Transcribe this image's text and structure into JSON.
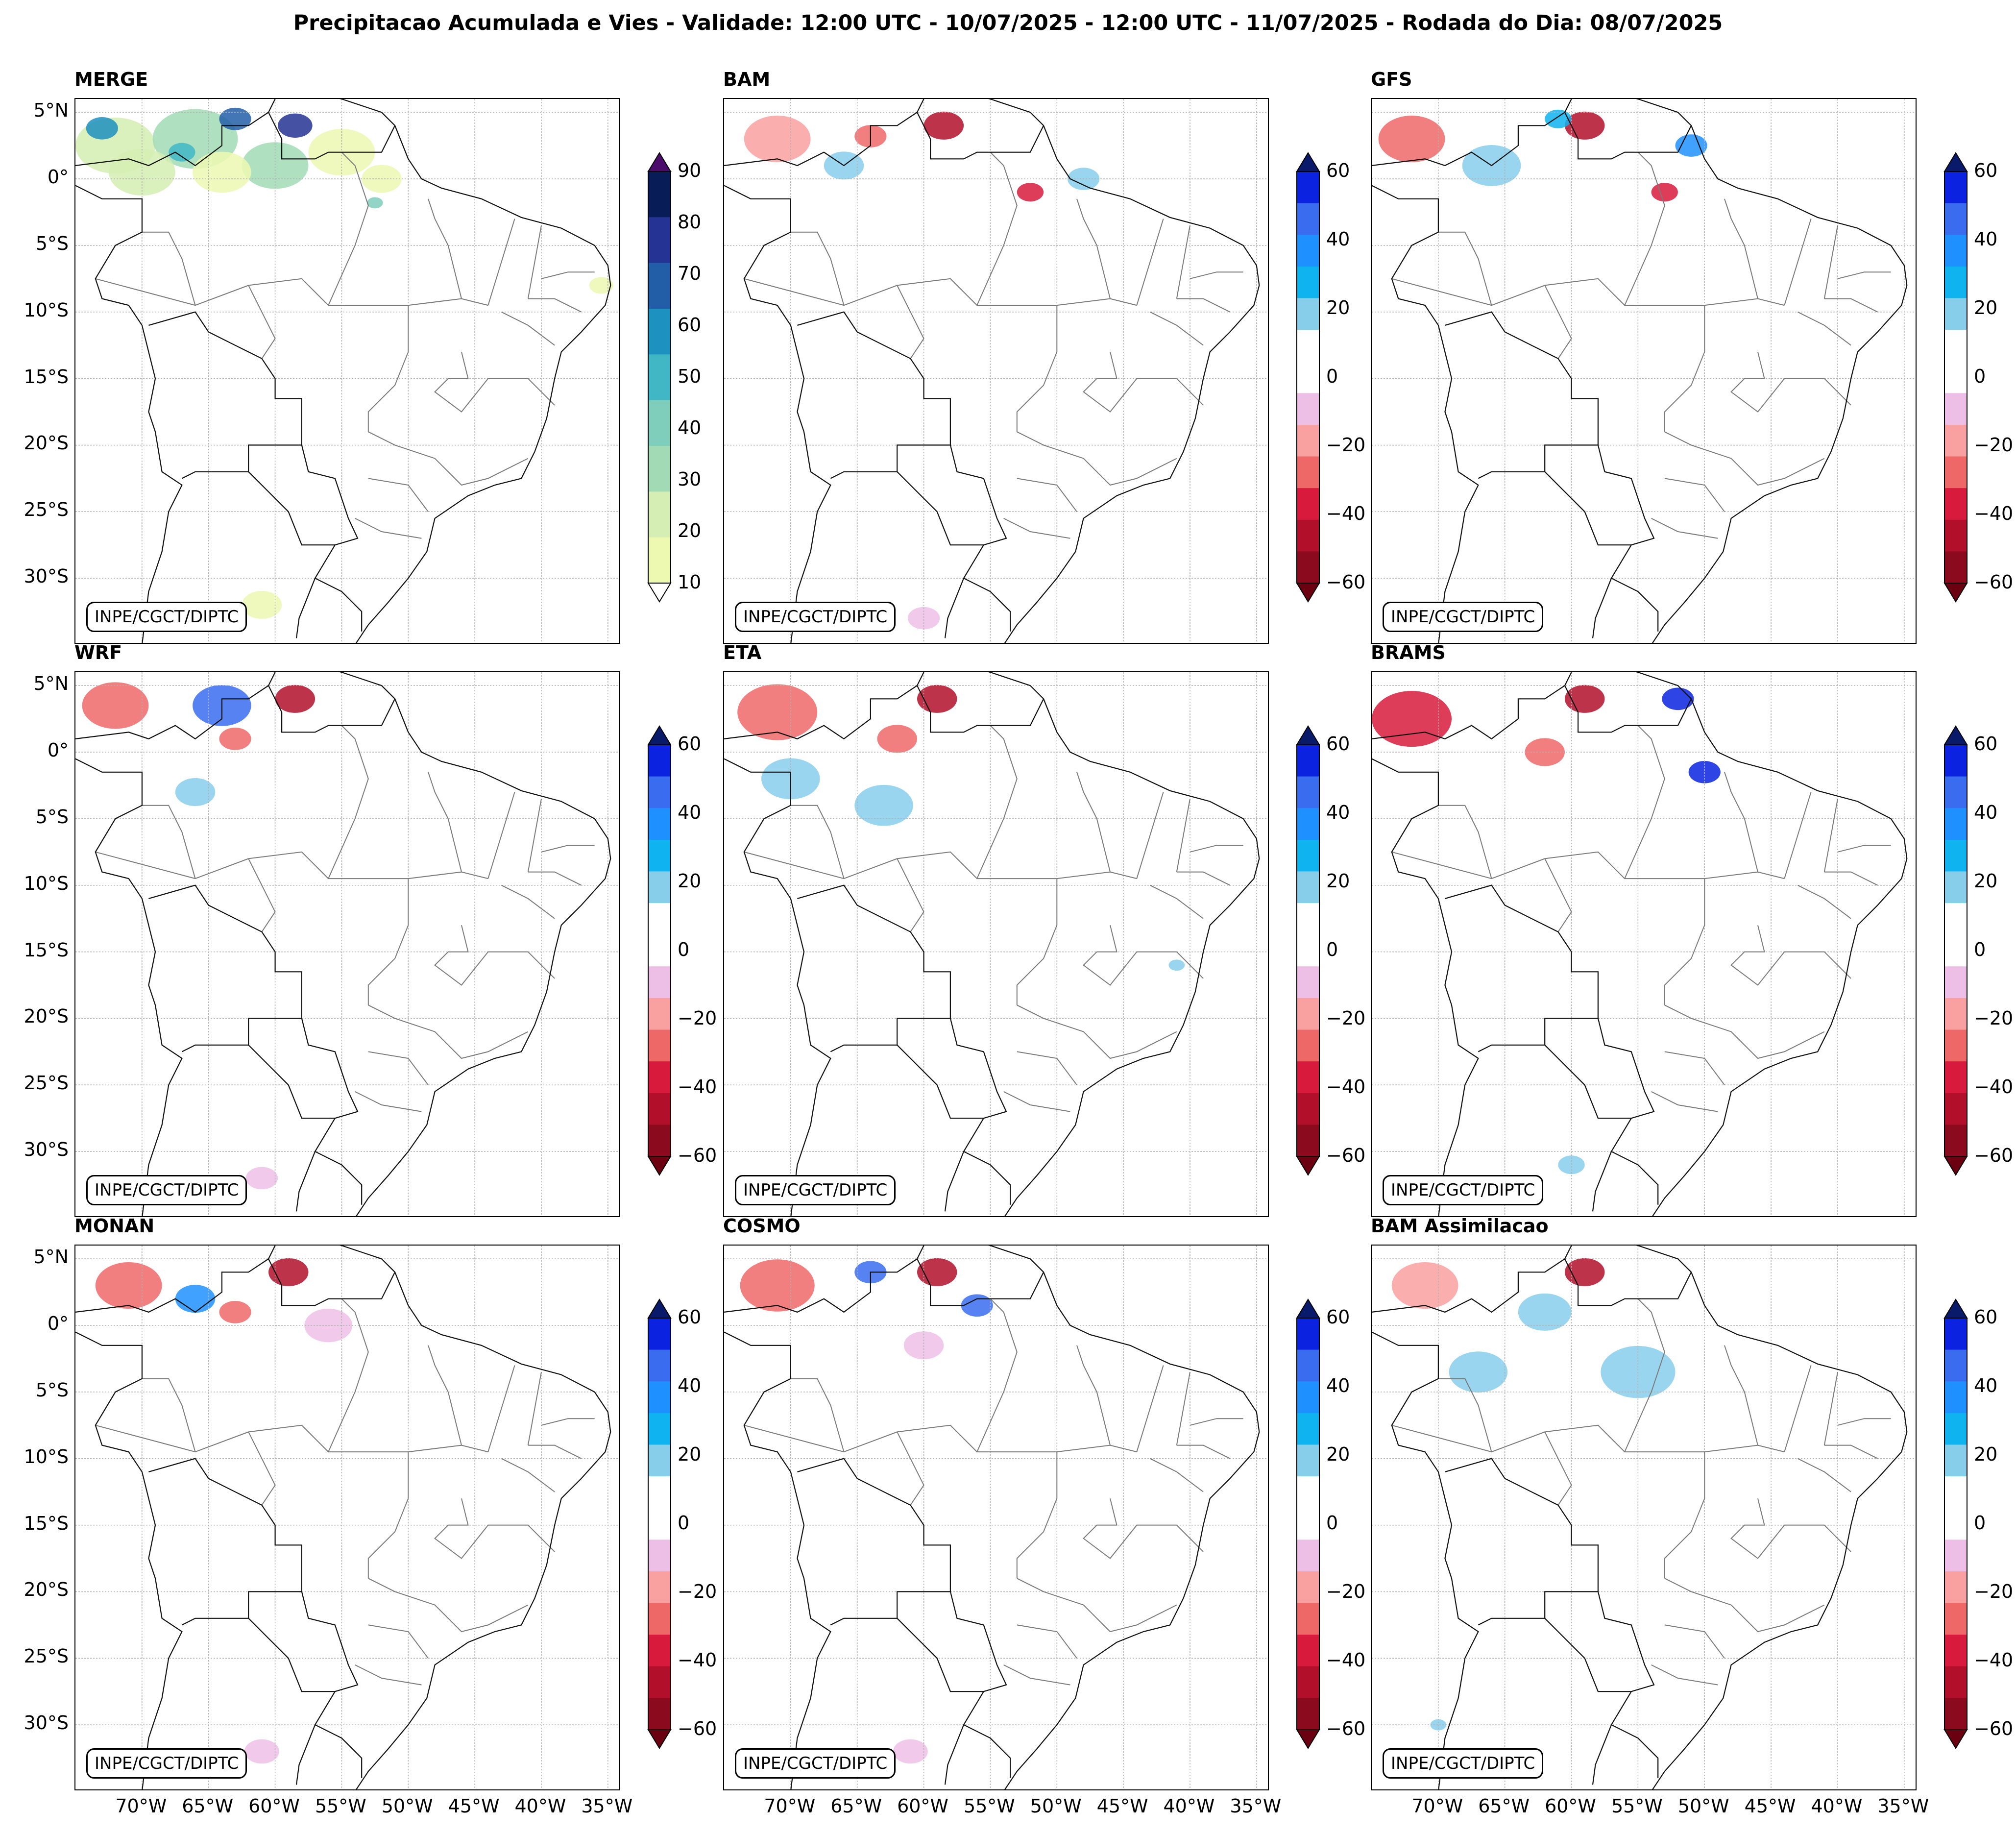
{
  "figure": {
    "title": "Precipitacao Acumulada e Vies - Validade: 12:00 UTC - 10/07/2025 - 12:00 UTC - 11/07/2025 - Rodada do Dia: 08/07/2025",
    "credit": "INPE/CGCT/DIPTC"
  },
  "axes": {
    "lat_labels": [
      "5°N",
      "0°",
      "5°S",
      "10°S",
      "15°S",
      "20°S",
      "25°S",
      "30°S"
    ],
    "lat_values": [
      5,
      0,
      -5,
      -10,
      -15,
      -20,
      -25,
      -30
    ],
    "lon_labels": [
      "70°W",
      "65°W",
      "60°W",
      "55°W",
      "50°W",
      "45°W",
      "40°W",
      "35°W"
    ],
    "lon_values": [
      -70,
      -65,
      -60,
      -55,
      -50,
      -45,
      -40,
      -35
    ],
    "extent": {
      "lon": [
        -75,
        -34
      ],
      "lat": [
        -35,
        6
      ]
    }
  },
  "panels": [
    {
      "name": "MERGE",
      "type": "precip"
    },
    {
      "name": "BAM",
      "type": "bias"
    },
    {
      "name": "GFS",
      "type": "bias"
    },
    {
      "name": "WRF",
      "type": "bias"
    },
    {
      "name": "ETA",
      "type": "bias"
    },
    {
      "name": "BRAMS",
      "type": "bias"
    },
    {
      "name": "MONAN",
      "type": "bias"
    },
    {
      "name": "COSMO",
      "type": "bias"
    },
    {
      "name": "BAM Assimilacao",
      "type": "bias"
    }
  ],
  "colorbars": {
    "precip": {
      "ticks": [
        "10",
        "20",
        "30",
        "40",
        "50",
        "60",
        "70",
        "80",
        "90"
      ],
      "colors": [
        "#edf8b1",
        "#d4eeb3",
        "#a1dab4",
        "#7fcdbb",
        "#41b6c4",
        "#1d91c0",
        "#225ea8",
        "#253494",
        "#081d58"
      ],
      "over": "#4b0c6b",
      "under": "#ffffff"
    },
    "bias": {
      "ticks": [
        "60",
        "40",
        "20",
        "0",
        "−20",
        "−40",
        "−60"
      ],
      "colors": [
        "#0b23e0",
        "#3a6cf0",
        "#1e90ff",
        "#0fb3f0",
        "#87ceeb",
        "#ffffff",
        "#ffffff",
        "#eebfe6",
        "#f9a0a0",
        "#ef6868",
        "#d81b3c",
        "#b2102a",
        "#8c0a1e"
      ],
      "over": "#0a1a6b",
      "under": "#6a0010"
    }
  },
  "data_features": {
    "MERGE": [
      {
        "lon": -72,
        "lat": 2.5,
        "r": 3.0,
        "v": 25
      },
      {
        "lon": -66,
        "lat": 3,
        "r": 3.2,
        "v": 35
      },
      {
        "lon": -63,
        "lat": 4.5,
        "r": 1.2,
        "v": 75
      },
      {
        "lon": -58.5,
        "lat": 4,
        "r": 1.3,
        "v": 85
      },
      {
        "lon": -73,
        "lat": 3.8,
        "r": 1.2,
        "v": 65
      },
      {
        "lon": -60,
        "lat": 1,
        "r": 2.5,
        "v": 30
      },
      {
        "lon": -70,
        "lat": 0.5,
        "r": 2.5,
        "v": 20
      },
      {
        "lon": -64,
        "lat": 0.5,
        "r": 2.2,
        "v": 15
      },
      {
        "lon": -55,
        "lat": 2,
        "r": 2.5,
        "v": 15
      },
      {
        "lon": -52,
        "lat": 0,
        "r": 1.5,
        "v": 15
      },
      {
        "lon": -61,
        "lat": -32,
        "r": 1.5,
        "v": 12
      },
      {
        "lon": -35.5,
        "lat": -8,
        "r": 0.9,
        "v": 15
      },
      {
        "lon": -52.5,
        "lat": -1.8,
        "r": 0.6,
        "v": 45
      },
      {
        "lon": -67,
        "lat": 2,
        "r": 1,
        "v": 55
      }
    ],
    "BAM": [
      {
        "lon": -71,
        "lat": 3,
        "r": 2.5,
        "v": -25
      },
      {
        "lon": -58.5,
        "lat": 4,
        "r": 1.5,
        "v": -55
      },
      {
        "lon": -64,
        "lat": 3.2,
        "r": 1.2,
        "v": -35
      },
      {
        "lon": -52,
        "lat": -1,
        "r": 1.0,
        "v": -40
      },
      {
        "lon": -66,
        "lat": 1,
        "r": 1.5,
        "v": 20
      },
      {
        "lon": -48,
        "lat": 0,
        "r": 1.2,
        "v": 15
      },
      {
        "lon": -60,
        "lat": -33,
        "r": 1.2,
        "v": -15
      }
    ],
    "GFS": [
      {
        "lon": -72,
        "lat": 3,
        "r": 2.5,
        "v": -30
      },
      {
        "lon": -59,
        "lat": 4,
        "r": 1.5,
        "v": -50
      },
      {
        "lon": -66,
        "lat": 1,
        "r": 2.2,
        "v": 20
      },
      {
        "lon": -51,
        "lat": 2.5,
        "r": 1.2,
        "v": 35
      },
      {
        "lon": -53,
        "lat": -1,
        "r": 1,
        "v": -40
      },
      {
        "lon": -61,
        "lat": 4.5,
        "r": 1.0,
        "v": 25
      }
    ],
    "WRF": [
      {
        "lon": -72,
        "lat": 3.5,
        "r": 2.5,
        "v": -35
      },
      {
        "lon": -64,
        "lat": 3.5,
        "r": 2.2,
        "v": 45
      },
      {
        "lon": -58.5,
        "lat": 4,
        "r": 1.5,
        "v": -55
      },
      {
        "lon": -63,
        "lat": 1,
        "r": 1.2,
        "v": -35
      },
      {
        "lon": -66,
        "lat": -3,
        "r": 1.5,
        "v": 15
      },
      {
        "lon": -61,
        "lat": -32,
        "r": 1.2,
        "v": -15
      }
    ],
    "ETA": [
      {
        "lon": -71,
        "lat": 3,
        "r": 3,
        "v": -35
      },
      {
        "lon": -59,
        "lat": 4,
        "r": 1.5,
        "v": -55
      },
      {
        "lon": -70,
        "lat": -2,
        "r": 2.2,
        "v": 15
      },
      {
        "lon": -63,
        "lat": -4,
        "r": 2.2,
        "v": 15
      },
      {
        "lon": -62,
        "lat": 1,
        "r": 1.5,
        "v": -30
      },
      {
        "lon": -41,
        "lat": -16,
        "r": 0.6,
        "v": 20
      }
    ],
    "BRAMS": [
      {
        "lon": -72,
        "lat": 2.5,
        "r": 3,
        "v": -40
      },
      {
        "lon": -59,
        "lat": 4,
        "r": 1.5,
        "v": -55
      },
      {
        "lon": -52,
        "lat": 4,
        "r": 1.2,
        "v": 55
      },
      {
        "lon": -50,
        "lat": -1.5,
        "r": 1.2,
        "v": 55
      },
      {
        "lon": -62,
        "lat": 0,
        "r": 1.5,
        "v": -30
      },
      {
        "lon": -60,
        "lat": -31,
        "r": 1.0,
        "v": 15
      }
    ],
    "MONAN": [
      {
        "lon": -71,
        "lat": 3,
        "r": 2.5,
        "v": -35
      },
      {
        "lon": -59,
        "lat": 4,
        "r": 1.5,
        "v": -55
      },
      {
        "lon": -66,
        "lat": 2,
        "r": 1.5,
        "v": 35
      },
      {
        "lon": -63,
        "lat": 1,
        "r": 1.2,
        "v": -30
      },
      {
        "lon": -56,
        "lat": 0,
        "r": 1.8,
        "v": -15
      },
      {
        "lon": -61,
        "lat": -32,
        "r": 1.3,
        "v": -15
      }
    ],
    "COSMO": [
      {
        "lon": -71,
        "lat": 3,
        "r": 2.8,
        "v": -35
      },
      {
        "lon": -59,
        "lat": 4,
        "r": 1.5,
        "v": -55
      },
      {
        "lon": -64,
        "lat": 4,
        "r": 1.2,
        "v": 45
      },
      {
        "lon": -56,
        "lat": 1.5,
        "r": 1.2,
        "v": 45
      },
      {
        "lon": -60,
        "lat": -1.5,
        "r": 1.5,
        "v": -15
      },
      {
        "lon": -61,
        "lat": -32,
        "r": 1.3,
        "v": -15
      }
    ],
    "BAM Assimilacao": [
      {
        "lon": -71,
        "lat": 3,
        "r": 2.5,
        "v": -25
      },
      {
        "lon": -59,
        "lat": 4,
        "r": 1.5,
        "v": -55
      },
      {
        "lon": -67,
        "lat": -3.5,
        "r": 2.2,
        "v": 15
      },
      {
        "lon": -55,
        "lat": -3.5,
        "r": 2.8,
        "v": 15
      },
      {
        "lon": -62,
        "lat": 1,
        "r": 2,
        "v": 15
      },
      {
        "lon": -70,
        "lat": -30,
        "r": 0.6,
        "v": 15
      }
    ]
  }
}
